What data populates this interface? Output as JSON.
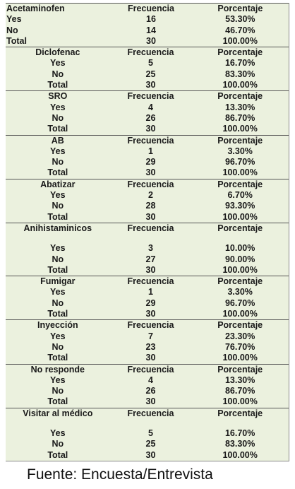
{
  "sections": [
    {
      "label": "Acetaminofen",
      "col2": "Frecuencia",
      "col3": "Porcentaje",
      "spacer": false,
      "rows": [
        {
          "label": "Yes",
          "freq": "16",
          "pct": "53.30%"
        },
        {
          "label": "No",
          "freq": "14",
          "pct": "46.70%"
        },
        {
          "label": "Total",
          "freq": "30",
          "pct": "100.00%"
        }
      ]
    },
    {
      "label": "Diclofenac",
      "col2": "Frecuencia",
      "col3": "Porcentaje",
      "spacer": false,
      "rows": [
        {
          "label": "Yes",
          "freq": "5",
          "pct": "16.70%"
        },
        {
          "label": "No",
          "freq": "25",
          "pct": "83.30%"
        },
        {
          "label": "Total",
          "freq": "30",
          "pct": "100.00%"
        }
      ]
    },
    {
      "label": "SRO",
      "col2": "Frecuencia",
      "col3": "Porcentaje",
      "spacer": false,
      "rows": [
        {
          "label": "Yes",
          "freq": "4",
          "pct": "13.30%"
        },
        {
          "label": "No",
          "freq": "26",
          "pct": "86.70%"
        },
        {
          "label": "Total",
          "freq": "30",
          "pct": "100.00%"
        }
      ]
    },
    {
      "label": "AB",
      "col2": "Frecuencia",
      "col3": "Porcentaje",
      "spacer": false,
      "rows": [
        {
          "label": "Yes",
          "freq": "1",
          "pct": "3.30%"
        },
        {
          "label": "No",
          "freq": "29",
          "pct": "96.70%"
        },
        {
          "label": "Total",
          "freq": "30",
          "pct": "100.00%"
        }
      ]
    },
    {
      "label": "Abatizar",
      "col2": "Frecuencia",
      "col3": "Porcentaje",
      "spacer": false,
      "rows": [
        {
          "label": "Yes",
          "freq": "2",
          "pct": "6.70%"
        },
        {
          "label": "No",
          "freq": "28",
          "pct": "93.30%"
        },
        {
          "label": "Total",
          "freq": "30",
          "pct": "100.00%"
        }
      ]
    },
    {
      "label": "Anihistaminicos",
      "col2": "Frecuencia",
      "col3": "Porcentaje",
      "spacer": true,
      "rows": [
        {
          "label": "Yes",
          "freq": "3",
          "pct": "10.00%"
        },
        {
          "label": "No",
          "freq": "27",
          "pct": "90.00%"
        },
        {
          "label": "Total",
          "freq": "30",
          "pct": "100.00%"
        }
      ]
    },
    {
      "label": "Fumigar",
      "col2": "Frecuencia",
      "col3": "Porcentaje",
      "spacer": false,
      "rows": [
        {
          "label": "Yes",
          "freq": "1",
          "pct": "3.30%"
        },
        {
          "label": "No",
          "freq": "29",
          "pct": "96.70%"
        },
        {
          "label": "Total",
          "freq": "30",
          "pct": "100.00%"
        }
      ]
    },
    {
      "label": "Inyección",
      "col2": "Frecuencia",
      "col3": "Porcentaje",
      "spacer": false,
      "rows": [
        {
          "label": "Yes",
          "freq": "7",
          "pct": "23.30%"
        },
        {
          "label": "No",
          "freq": "23",
          "pct": "76.70%"
        },
        {
          "label": "Total",
          "freq": "30",
          "pct": "100.00%"
        }
      ]
    },
    {
      "label": "No responde",
      "col2": "Frecuencia",
      "col3": "Porcentaje",
      "spacer": false,
      "rows": [
        {
          "label": "Yes",
          "freq": "4",
          "pct": "13.30%"
        },
        {
          "label": "No",
          "freq": "26",
          "pct": "86.70%"
        },
        {
          "label": "Total",
          "freq": "30",
          "pct": "100.00%"
        }
      ]
    },
    {
      "label": "Visitar al médico",
      "col2": "Frecuencia",
      "col3": "Porcentaje",
      "spacer": true,
      "rows": [
        {
          "label": "Yes",
          "freq": "5",
          "pct": "16.70%"
        },
        {
          "label": "No",
          "freq": "25",
          "pct": "83.30%"
        },
        {
          "label": "Total",
          "freq": "30",
          "pct": "100.00%"
        }
      ]
    }
  ],
  "source": "Fuente: Encuesta/Entrevista"
}
